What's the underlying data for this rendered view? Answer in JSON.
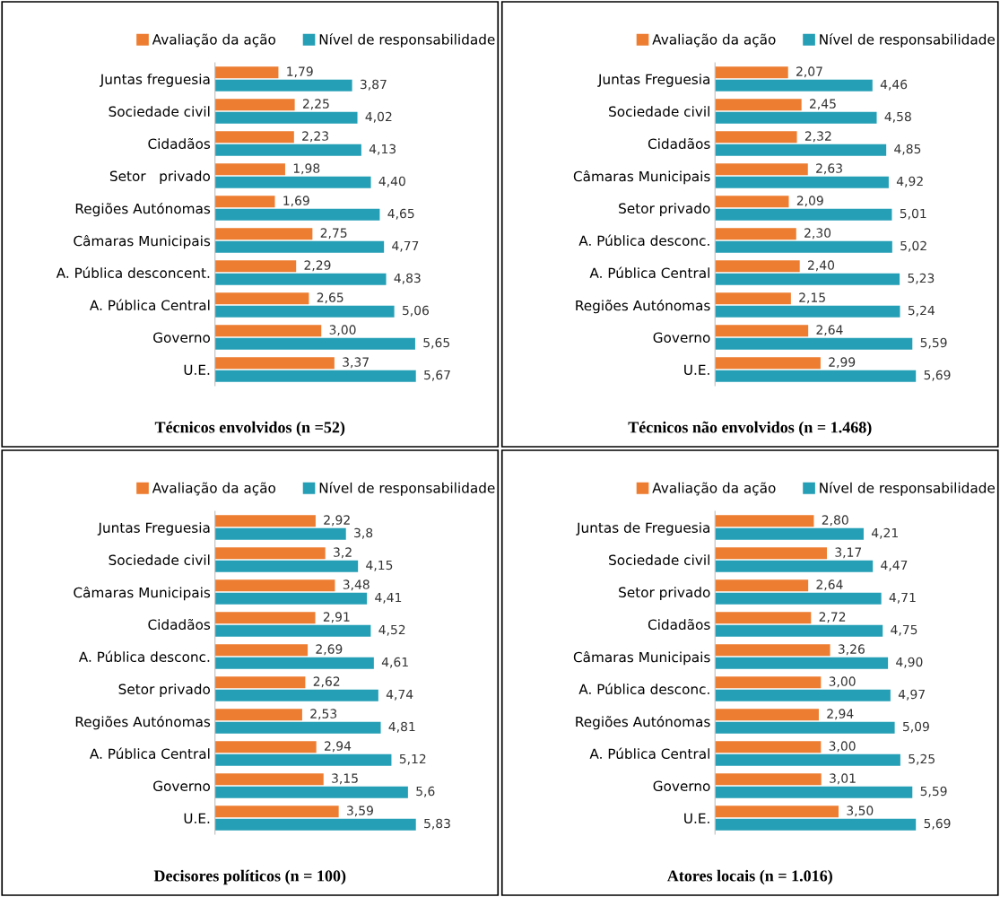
{
  "chart_data": [
    {
      "type": "bar",
      "orientation": "horizontal",
      "title": "Técnicos envolvidos (n =52)",
      "legend": "top",
      "tick_labels": "y",
      "categories": [
        "Juntas freguesia",
        "Sociedade civil",
        "Cidadãos",
        "Setor   privado",
        "Regiões Autónomas",
        "Câmaras Municipais",
        "A. Pública desconcent.",
        "A. Pública Central",
        "Governo",
        "U.E."
      ],
      "series": [
        {
          "name": "Avaliação da ação",
          "color": "#ed7d31",
          "values": [
            1.79,
            2.25,
            2.23,
            1.98,
            1.69,
            2.75,
            2.29,
            2.65,
            3.0,
            3.37
          ],
          "value_labels": [
            "1,79",
            "2,25",
            "2,23",
            "1,98",
            "1,69",
            "2,75",
            "2,29",
            "2,65",
            "3,00",
            "3,37"
          ]
        },
        {
          "name": "Nível de responsabilidade",
          "color": "#259fb6",
          "values": [
            3.87,
            4.02,
            4.13,
            4.4,
            4.65,
            4.77,
            4.83,
            5.06,
            5.65,
            5.67
          ],
          "value_labels": [
            "3,87",
            "4,02",
            "4,13",
            "4,40",
            "4,65",
            "4,77",
            "4,83",
            "5,06",
            "5,65",
            "5,67"
          ]
        }
      ]
    },
    {
      "type": "bar",
      "orientation": "horizontal",
      "title": "Técnicos não envolvidos (n = 1.468)",
      "legend": "top",
      "tick_labels": "y",
      "categories": [
        "Juntas Freguesia",
        "Sociedade civil",
        "Cidadãos",
        "Câmaras Municipais",
        "Setor privado",
        "A. Pública desconc.",
        "A. Pública Central",
        "Regiões Autónomas",
        "Governo",
        "U.E."
      ],
      "series": [
        {
          "name": "Avaliação da ação",
          "color": "#ed7d31",
          "values": [
            2.07,
            2.45,
            2.32,
            2.63,
            2.09,
            2.3,
            2.4,
            2.15,
            2.64,
            2.99
          ],
          "value_labels": [
            "2,07",
            "2,45",
            "2,32",
            "2,63",
            "2,09",
            "2,30",
            "2,40",
            "2,15",
            "2,64",
            "2,99"
          ]
        },
        {
          "name": "Nível de responsabilidade",
          "color": "#259fb6",
          "values": [
            4.46,
            4.58,
            4.85,
            4.92,
            5.01,
            5.02,
            5.23,
            5.24,
            5.59,
            5.69
          ],
          "value_labels": [
            "4,46",
            "4,58",
            "4,85",
            "4,92",
            "5,01",
            "5,02",
            "5,23",
            "5,24",
            "5,59",
            "5,69"
          ]
        }
      ]
    },
    {
      "type": "bar",
      "orientation": "horizontal",
      "title": "Decisores políticos (n = 100)",
      "legend": "top",
      "tick_labels": "y",
      "categories": [
        "Juntas Freguesia",
        "Sociedade civil",
        "Câmaras Municipais",
        "Cidadãos",
        "A. Pública desconc.",
        "Setor privado",
        "Regiões Autónomas",
        "A. Pública Central",
        "Governo",
        "U.E."
      ],
      "series": [
        {
          "name": "Avaliação da ação",
          "color": "#ed7d31",
          "values": [
            2.92,
            3.2,
            3.48,
            2.91,
            2.69,
            2.62,
            2.53,
            2.94,
            3.15,
            3.59
          ],
          "value_labels": [
            "2,92",
            "3,2",
            "3,48",
            "2,91",
            "2,69",
            "2,62",
            "2,53",
            "2,94",
            "3,15",
            "3,59"
          ]
        },
        {
          "name": "Nível de responsabilidade",
          "color": "#259fb6",
          "values": [
            3.8,
            4.15,
            4.41,
            4.52,
            4.61,
            4.74,
            4.81,
            5.12,
            5.6,
            5.83
          ],
          "value_labels": [
            "3,8",
            "4,15",
            "4,41",
            "4,52",
            "4,61",
            "4,74",
            "4,81",
            "5,12",
            "5,6",
            "5,83"
          ]
        }
      ]
    },
    {
      "type": "bar",
      "orientation": "horizontal",
      "title": "Atores locais (n = 1.016)",
      "legend": "top",
      "tick_labels": "y",
      "categories": [
        "Juntas de Freguesia",
        "Sociedade civil",
        "Setor privado",
        "Cidadãos",
        "Câmaras Municipais",
        "A. Pública desconc.",
        "Regiões Autónomas",
        "A. Pública Central",
        "Governo",
        "U.E."
      ],
      "series": [
        {
          "name": "Avaliação da ação",
          "color": "#ed7d31",
          "values": [
            2.8,
            3.17,
            2.64,
            2.72,
            3.26,
            3.0,
            2.94,
            3.0,
            3.01,
            3.5
          ],
          "value_labels": [
            "2,80",
            "3,17",
            "2,64",
            "2,72",
            "3,26",
            "3,00",
            "2,94",
            "3,00",
            "3,01",
            "3,50"
          ]
        },
        {
          "name": "Nível de responsabilidade",
          "color": "#259fb6",
          "values": [
            4.21,
            4.47,
            4.71,
            4.75,
            4.9,
            4.97,
            5.09,
            5.25,
            5.59,
            5.69
          ],
          "value_labels": [
            "4,21",
            "4,47",
            "4,71",
            "4,75",
            "4,90",
            "4,97",
            "5,09",
            "5,25",
            "5,59",
            "5,69"
          ]
        }
      ]
    }
  ]
}
